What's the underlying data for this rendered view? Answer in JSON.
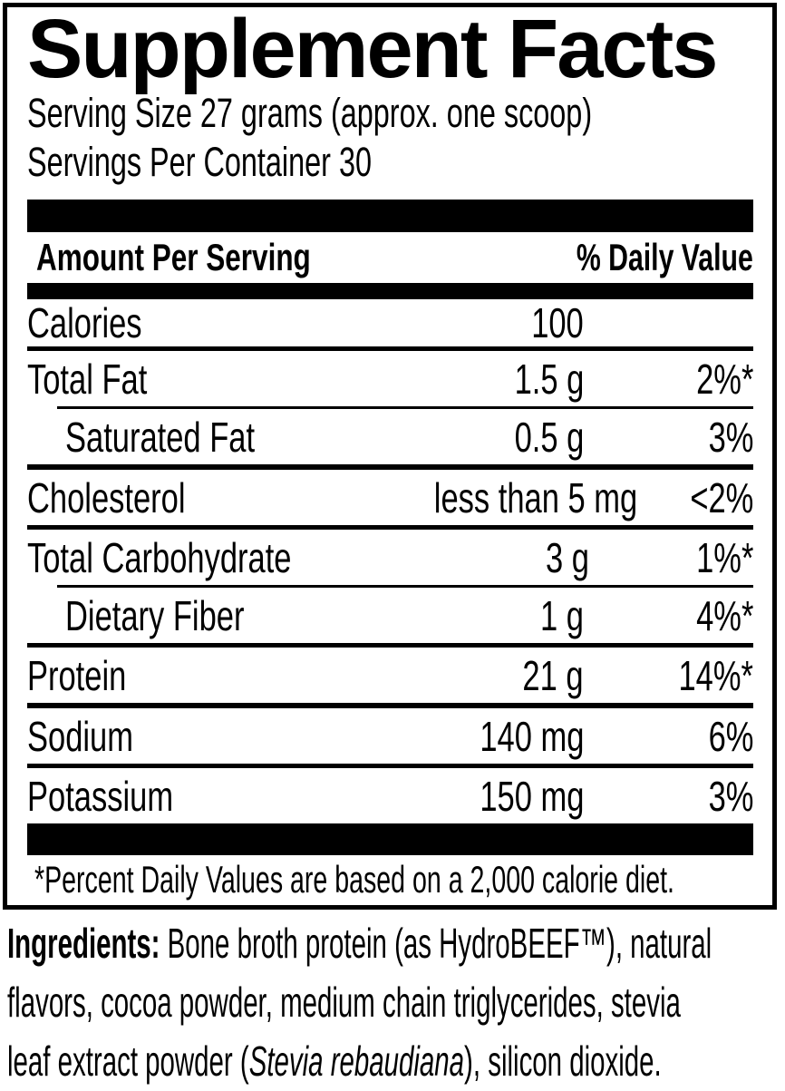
{
  "colors": {
    "text": "#000000",
    "background": "#ffffff"
  },
  "title": "Supplement Facts",
  "serving": {
    "serving_size": "Serving Size 27 grams (approx. one scoop)",
    "servings_per_container": "Servings Per Container 30"
  },
  "table": {
    "header": {
      "amount_label": "Amount Per Serving",
      "dv_label": "% Daily Value"
    },
    "rows": [
      {
        "label": "Calories",
        "amount": "100",
        "dv": "",
        "indent": false
      },
      {
        "label": "Total Fat",
        "amount": "1.5 g",
        "dv": "2%*",
        "indent": false
      },
      {
        "label": "Saturated Fat",
        "amount": "0.5 g",
        "dv": "3%",
        "indent": true
      },
      {
        "label": "Cholesterol",
        "amount": "less than 5 mg",
        "dv": "<2%",
        "indent": false
      },
      {
        "label": "Total Carbohydrate",
        "amount": "3 g",
        "dv": "1%*",
        "indent": false
      },
      {
        "label": "Dietary Fiber",
        "amount": "1 g",
        "dv": "4%*",
        "indent": true
      },
      {
        "label": "Protein",
        "amount": "21 g",
        "dv": "14%*",
        "indent": false
      },
      {
        "label": "Sodium",
        "amount": "140 mg",
        "dv": "6%",
        "indent": false
      },
      {
        "label": "Potassium",
        "amount": "150 mg",
        "dv": "3%",
        "indent": false
      }
    ],
    "footnote": "*Percent Daily Values are based on a 2,000 calorie diet."
  },
  "ingredients": {
    "lines": [
      [
        {
          "t": "Ingredients: ",
          "b": true
        },
        {
          "t": "Bone broth protein (as HydroBEEF™), natural"
        }
      ],
      [
        {
          "t": "flavors, cocoa powder, medium chain triglycerides, stevia"
        }
      ],
      [
        {
          "t": "leaf extract powder ("
        },
        {
          "t": "Stevia rebaudiana",
          "i": true
        },
        {
          "t": "), silicon dioxide."
        }
      ]
    ]
  }
}
